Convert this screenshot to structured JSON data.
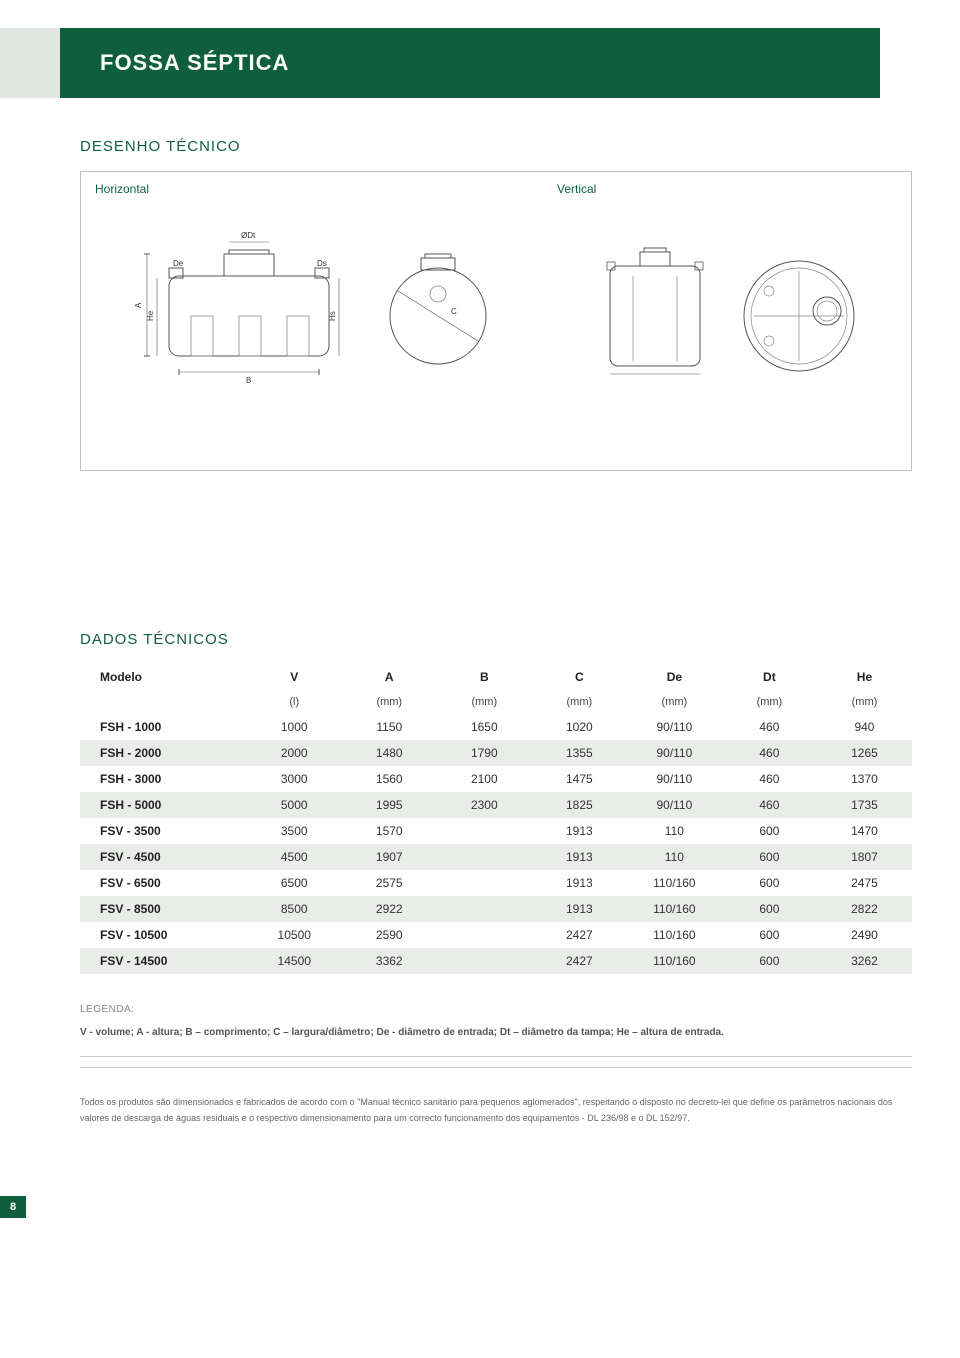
{
  "page": {
    "title": "FOSSA SÉPTICA",
    "number": "8"
  },
  "colors": {
    "brand_green": "#0f5f3f",
    "stub_gray": "#e3e7e3",
    "row_alt": "#e9ece9",
    "border": "#b8c4b8",
    "text": "#333333",
    "muted": "#888888"
  },
  "drawing": {
    "heading": "DESENHO TÉCNICO",
    "horizontal_label": "Horizontal",
    "vertical_label": "Vertical",
    "dims": {
      "A": "A",
      "B": "B",
      "C": "C",
      "De": "De",
      "Ds": "Ds",
      "Dt": "ØDt",
      "He": "He",
      "Hs": "Hs"
    }
  },
  "table": {
    "heading": "DADOS TÉCNICOS",
    "columns": [
      "Modelo",
      "V",
      "A",
      "B",
      "C",
      "De",
      "Dt",
      "He"
    ],
    "units": [
      "",
      "(l)",
      "(mm)",
      "(mm)",
      "(mm)",
      "(mm)",
      "(mm)",
      "(mm)"
    ],
    "col_widths": [
      "20%",
      "11.4%",
      "11.4%",
      "11.4%",
      "11.4%",
      "11.4%",
      "11.4%",
      "11.4%"
    ],
    "rows": [
      [
        "FSH - 1000",
        "1000",
        "1150",
        "1650",
        "1020",
        "90/110",
        "460",
        "940"
      ],
      [
        "FSH - 2000",
        "2000",
        "1480",
        "1790",
        "1355",
        "90/110",
        "460",
        "1265"
      ],
      [
        "FSH - 3000",
        "3000",
        "1560",
        "2100",
        "1475",
        "90/110",
        "460",
        "1370"
      ],
      [
        "FSH - 5000",
        "5000",
        "1995",
        "2300",
        "1825",
        "90/110",
        "460",
        "1735"
      ],
      [
        "FSV - 3500",
        "3500",
        "1570",
        "",
        "1913",
        "110",
        "600",
        "1470"
      ],
      [
        "FSV - 4500",
        "4500",
        "1907",
        "",
        "1913",
        "110",
        "600",
        "1807"
      ],
      [
        "FSV - 6500",
        "6500",
        "2575",
        "",
        "1913",
        "110/160",
        "600",
        "2475"
      ],
      [
        "FSV - 8500",
        "8500",
        "2922",
        "",
        "1913",
        "110/160",
        "600",
        "2822"
      ],
      [
        "FSV - 10500",
        "10500",
        "2590",
        "",
        "2427",
        "110/160",
        "600",
        "2490"
      ],
      [
        "FSV - 14500",
        "14500",
        "3362",
        "",
        "2427",
        "110/160",
        "600",
        "3262"
      ]
    ]
  },
  "legend": {
    "title": "LEGENDA:",
    "text": "V - volume;  A - altura; B – comprimento; C – largura/diâmetro; De - diâmetro de entrada; Dt – diâmetro da tampa; He – altura de entrada."
  },
  "footnote": "Todos os produtos são dimensionados e fabricados de acordo com o \"Manual técnico sanitário para pequenos aglomerados\", respeitando o disposto no decreto-lei que define os parâmetros nacionais dos valores de descarga de águas residuais e o respectivo dimensionamento para um correcto funcionamento dos equipamentos - DL 236/98 e o DL 152/97."
}
